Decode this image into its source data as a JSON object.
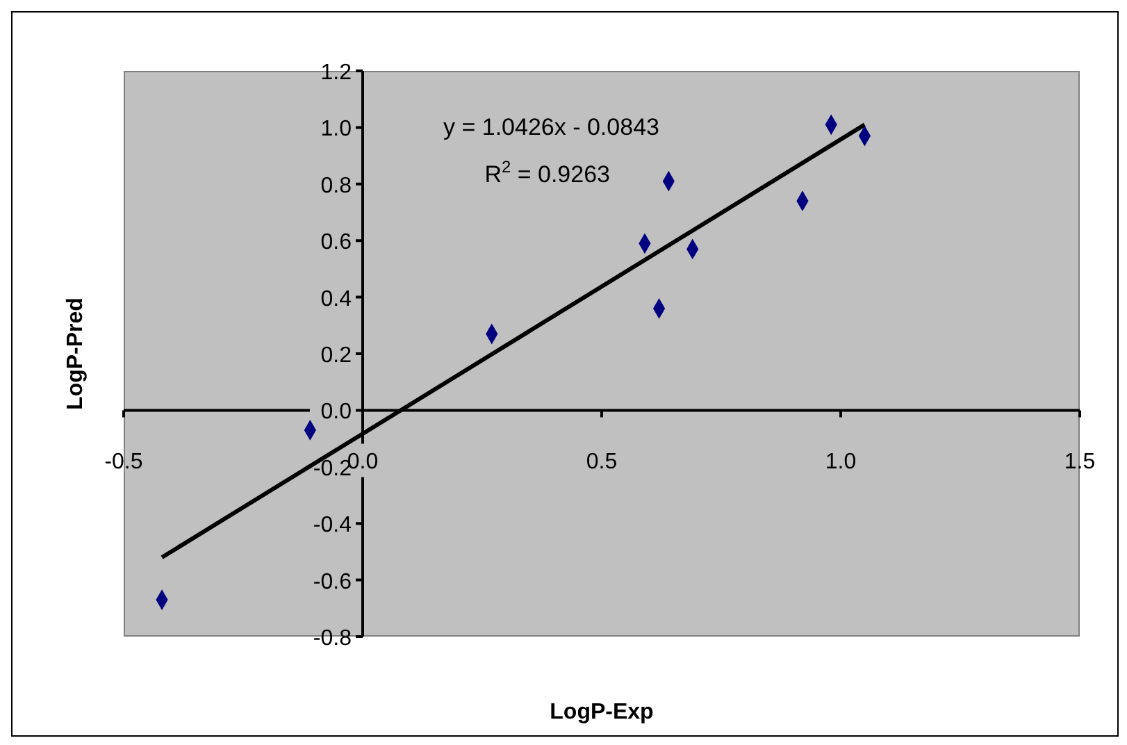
{
  "chart_data": {
    "type": "scatter",
    "xlabel": "LogP-Exp",
    "ylabel": "LogP-Pred",
    "xlim": [
      -0.5,
      1.5
    ],
    "xticks": [
      -0.5,
      {
        "value": 0,
        "label": "0.0"
      },
      0.5,
      {
        "value": 1,
        "label": "1.0"
      },
      1.5
    ],
    "ylim": [
      -0.8,
      1.2
    ],
    "yticks": [
      -0.8,
      -0.6,
      -0.4,
      -0.2,
      {
        "value": 0,
        "label": "0.0"
      },
      0.2,
      0.4,
      0.6,
      0.8,
      {
        "value": 1,
        "label": "1.0"
      },
      1.2
    ],
    "marker": "diamond",
    "annotations": [
      "y = 1.0426x - 0.0843",
      "R$^{2}$ = 0.9263"
    ],
    "series": [
      {
        "color": "#000080",
        "x": [
          -0.42,
          -0.11,
          0.27,
          0.59,
          0.62,
          0.64,
          0.69,
          0.92,
          0.98,
          1.05
        ],
        "values": [
          -0.67,
          -0.07,
          0.27,
          0.59,
          0.36,
          0.81,
          0.57,
          0.74,
          1.01,
          0.97
        ]
      },
      {
        "type": "line",
        "color": "#000000",
        "x": [
          -0.42,
          1.05
        ],
        "values": [
          -0.52,
          1.01
        ],
        "marker": "none",
        "line_style": "solid"
      }
    ]
  }
}
